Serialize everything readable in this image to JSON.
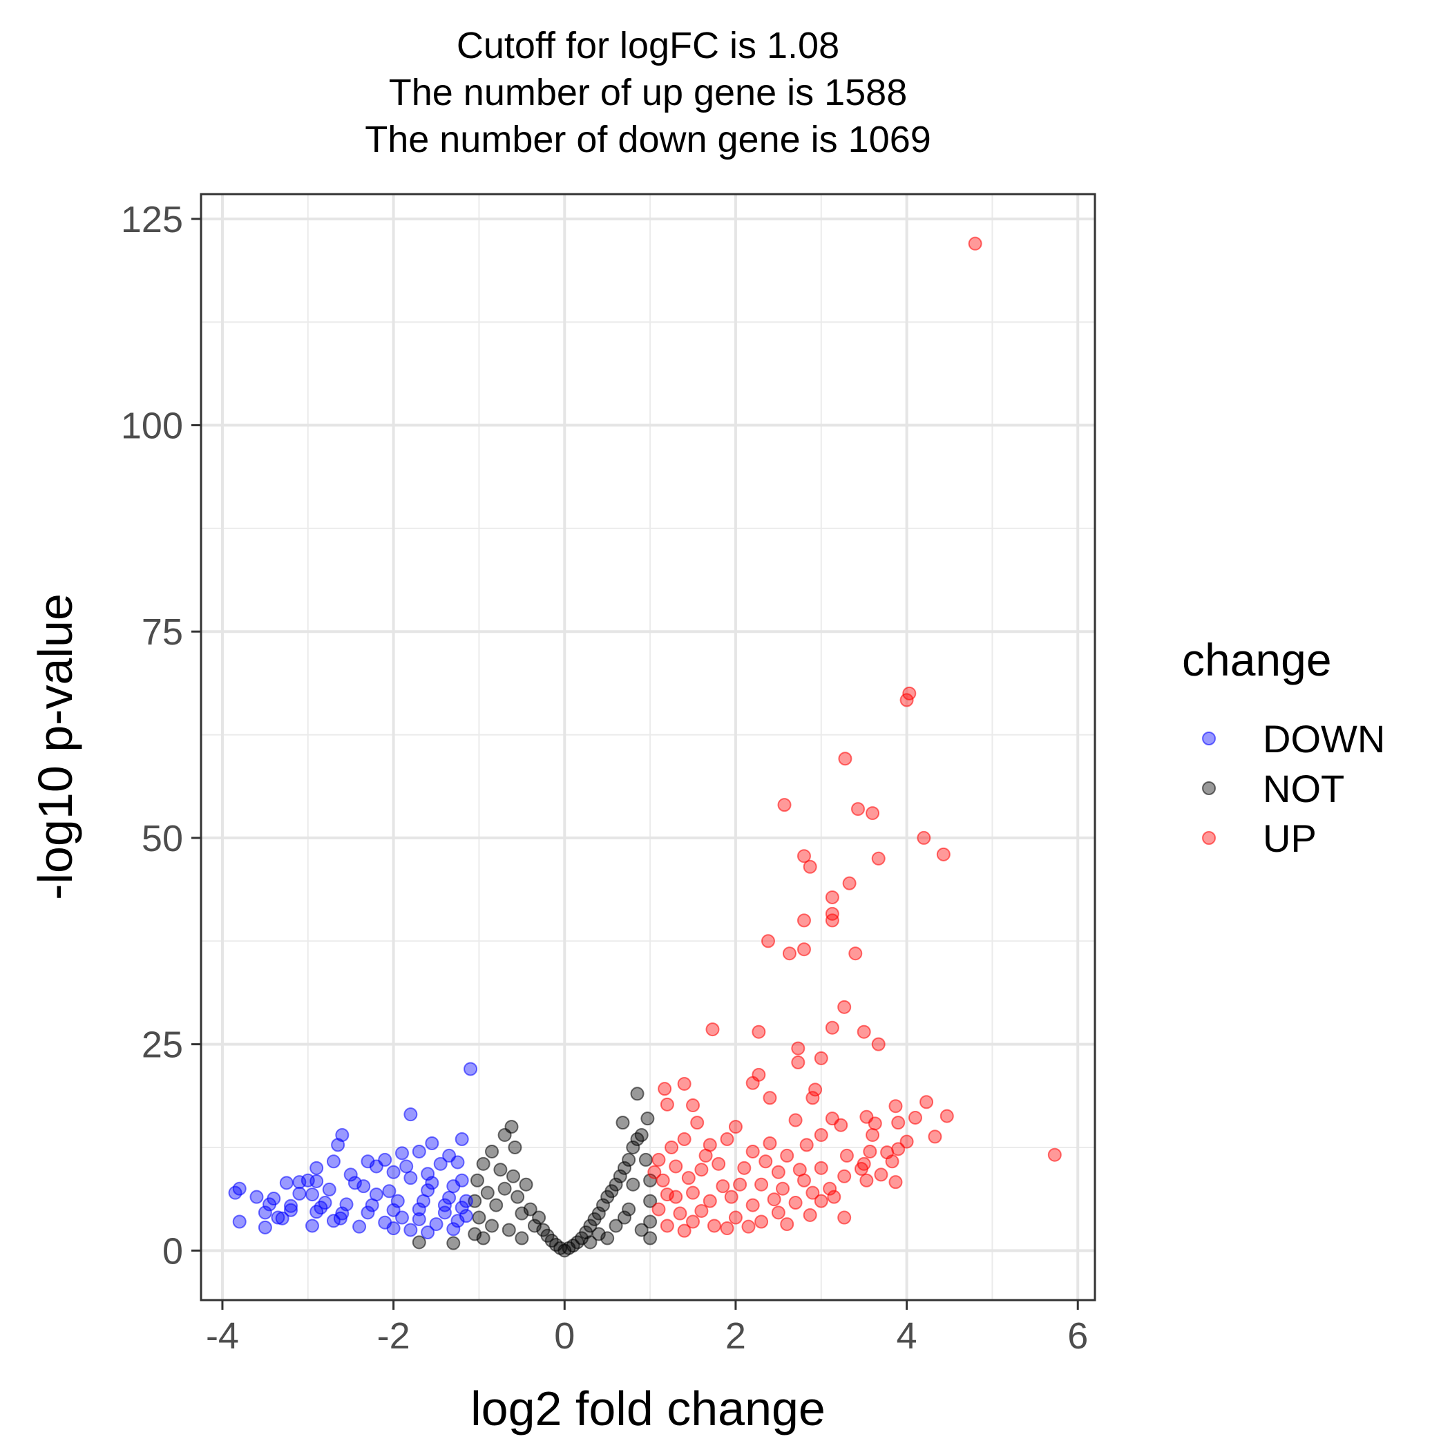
{
  "chart_data": {
    "type": "scatter",
    "title_lines": [
      "Cutoff for logFC is 1.08",
      "The number of up gene is 1588",
      "The number of down gene is 1069"
    ],
    "xlabel": "log2 fold change",
    "ylabel": "-log10 p-value",
    "xlim": [
      -4.25,
      6.2
    ],
    "ylim": [
      -6,
      128
    ],
    "xticks": [
      -4,
      -2,
      0,
      2,
      4,
      6
    ],
    "xtick_labels": [
      "-4",
      "-2",
      "0",
      "2",
      "4",
      "6"
    ],
    "yticks": [
      0,
      25,
      50,
      75,
      100,
      125
    ],
    "ytick_labels": [
      "0",
      "25",
      "50",
      "75",
      "100",
      "125"
    ],
    "grid": true,
    "legend": {
      "title": "change",
      "position": "right",
      "entries": [
        "DOWN",
        "NOT",
        "UP"
      ]
    },
    "colors": {
      "DOWN": "#0000ff",
      "NOT": "#000000",
      "UP": "#ff0000"
    },
    "point_opacity": 0.4,
    "series": [
      {
        "name": "DOWN",
        "points": [
          [
            -1.1,
            22
          ],
          [
            -1.8,
            16.5
          ],
          [
            -2.6,
            14
          ],
          [
            -1.55,
            13
          ],
          [
            -1.2,
            13.5
          ],
          [
            -1.7,
            12
          ],
          [
            -2.65,
            12.8
          ],
          [
            -1.35,
            11.5
          ],
          [
            -1.9,
            11.8
          ],
          [
            -2.1,
            11
          ],
          [
            -2.3,
            10.8
          ],
          [
            -2.7,
            10.8
          ],
          [
            -2.9,
            10
          ],
          [
            -2.2,
            10.2
          ],
          [
            -1.45,
            10.5
          ],
          [
            -1.25,
            10.7
          ],
          [
            -2.5,
            9.2
          ],
          [
            -2.0,
            9.5
          ],
          [
            -1.6,
            9.3
          ],
          [
            -3.25,
            8.2
          ],
          [
            -2.9,
            8.4
          ],
          [
            -3.1,
            8.3
          ],
          [
            -2.45,
            8.2
          ],
          [
            -1.8,
            8.8
          ],
          [
            -3.8,
            7.5
          ],
          [
            -3.85,
            7.0
          ],
          [
            -3.6,
            6.5
          ],
          [
            -3.4,
            6.3
          ],
          [
            -3.1,
            6.9
          ],
          [
            -2.95,
            6.8
          ],
          [
            -2.75,
            7.4
          ],
          [
            -2.35,
            7.8
          ],
          [
            -2.05,
            7.2
          ],
          [
            -1.6,
            7.3
          ],
          [
            -1.3,
            7.8
          ],
          [
            -3.45,
            5.6
          ],
          [
            -3.2,
            5.4
          ],
          [
            -2.8,
            5.8
          ],
          [
            -2.55,
            5.6
          ],
          [
            -2.25,
            5.5
          ],
          [
            -1.95,
            6.0
          ],
          [
            -1.65,
            6.0
          ],
          [
            -1.35,
            6.4
          ],
          [
            -3.5,
            4.6
          ],
          [
            -3.35,
            4.0
          ],
          [
            -3.2,
            4.9
          ],
          [
            -2.9,
            4.7
          ],
          [
            -2.6,
            4.5
          ],
          [
            -2.3,
            4.6
          ],
          [
            -2.0,
            4.9
          ],
          [
            -1.7,
            5.0
          ],
          [
            -1.4,
            4.6
          ],
          [
            -1.2,
            5.2
          ],
          [
            -3.8,
            3.5
          ],
          [
            -3.5,
            2.8
          ],
          [
            -3.3,
            3.9
          ],
          [
            -2.95,
            3.0
          ],
          [
            -2.7,
            3.6
          ],
          [
            -2.4,
            2.9
          ],
          [
            -2.1,
            3.4
          ],
          [
            -1.8,
            2.5
          ],
          [
            -1.5,
            3.2
          ],
          [
            -1.25,
            3.6
          ],
          [
            -1.15,
            4.2
          ],
          [
            -1.15,
            6.0
          ],
          [
            -1.2,
            8.5
          ],
          [
            -2.2,
            6.8
          ],
          [
            -1.9,
            4.0
          ],
          [
            -1.55,
            8.2
          ],
          [
            -1.4,
            5.5
          ],
          [
            -1.85,
            10.2
          ],
          [
            -2.0,
            2.7
          ],
          [
            -3.0,
            8.5
          ],
          [
            -2.62,
            3.9
          ],
          [
            -1.7,
            3.8
          ],
          [
            -1.6,
            2.2
          ],
          [
            -1.3,
            2.6
          ],
          [
            -2.85,
            5.2
          ]
        ]
      },
      {
        "name": "NOT",
        "points": [
          [
            -0.95,
            10.5
          ],
          [
            -0.85,
            12.0
          ],
          [
            -0.7,
            14.0
          ],
          [
            -0.62,
            15.0
          ],
          [
            -0.58,
            12.5
          ],
          [
            -0.75,
            9.8
          ],
          [
            -1.02,
            8.5
          ],
          [
            -1.05,
            6.0
          ],
          [
            -1.0,
            4.0
          ],
          [
            -1.05,
            2.0
          ],
          [
            -0.9,
            7.0
          ],
          [
            -0.8,
            5.5
          ],
          [
            -0.7,
            7.5
          ],
          [
            -0.6,
            9.0
          ],
          [
            -0.55,
            6.5
          ],
          [
            -0.5,
            4.5
          ],
          [
            -0.45,
            8.0
          ],
          [
            -0.4,
            5.0
          ],
          [
            -0.35,
            3.0
          ],
          [
            -0.3,
            4.0
          ],
          [
            -0.25,
            2.5
          ],
          [
            -0.2,
            1.8
          ],
          [
            -0.15,
            1.2
          ],
          [
            -0.1,
            0.7
          ],
          [
            -0.05,
            0.3
          ],
          [
            -0.85,
            3.0
          ],
          [
            -0.95,
            1.5
          ],
          [
            -0.65,
            2.5
          ],
          [
            -0.5,
            1.5
          ],
          [
            -1.7,
            1.0
          ],
          [
            -1.3,
            0.9
          ],
          [
            0.0,
            0.0
          ],
          [
            0.05,
            0.3
          ],
          [
            0.1,
            0.6
          ],
          [
            0.15,
            1.0
          ],
          [
            0.2,
            1.5
          ],
          [
            0.25,
            2.2
          ],
          [
            0.3,
            3.0
          ],
          [
            0.35,
            3.8
          ],
          [
            0.4,
            4.5
          ],
          [
            0.45,
            5.5
          ],
          [
            0.5,
            6.5
          ],
          [
            0.55,
            7.2
          ],
          [
            0.6,
            8.0
          ],
          [
            0.65,
            9.0
          ],
          [
            0.7,
            10.0
          ],
          [
            0.75,
            11.0
          ],
          [
            0.8,
            12.5
          ],
          [
            0.85,
            13.5
          ],
          [
            0.9,
            14.0
          ],
          [
            0.95,
            11.0
          ],
          [
            1.0,
            8.5
          ],
          [
            1.0,
            6.0
          ],
          [
            1.0,
            3.5
          ],
          [
            1.0,
            1.5
          ],
          [
            0.85,
            19.0
          ],
          [
            0.68,
            15.5
          ],
          [
            0.97,
            16.0
          ],
          [
            0.75,
            5.0
          ],
          [
            0.6,
            3.0
          ],
          [
            0.9,
            2.5
          ],
          [
            0.5,
            1.5
          ],
          [
            0.8,
            8.0
          ],
          [
            0.4,
            2.0
          ],
          [
            0.7,
            4.0
          ],
          [
            0.3,
            1.0
          ]
        ]
      },
      {
        "name": "UP",
        "points": [
          [
            4.8,
            122
          ],
          [
            4.03,
            67.5
          ],
          [
            4.0,
            66.7
          ],
          [
            3.28,
            59.6
          ],
          [
            2.57,
            54.0
          ],
          [
            3.43,
            53.5
          ],
          [
            3.6,
            53.0
          ],
          [
            4.2,
            50.0
          ],
          [
            4.43,
            48.0
          ],
          [
            2.8,
            47.8
          ],
          [
            3.67,
            47.5
          ],
          [
            2.87,
            46.5
          ],
          [
            3.33,
            44.5
          ],
          [
            3.13,
            42.8
          ],
          [
            3.13,
            40.8
          ],
          [
            3.13,
            40.0
          ],
          [
            2.8,
            40.0
          ],
          [
            2.38,
            37.5
          ],
          [
            2.63,
            36.0
          ],
          [
            3.4,
            36.0
          ],
          [
            2.8,
            36.5
          ],
          [
            3.27,
            29.5
          ],
          [
            3.13,
            27.0
          ],
          [
            1.73,
            26.8
          ],
          [
            2.27,
            26.5
          ],
          [
            3.5,
            26.5
          ],
          [
            3.67,
            25.0
          ],
          [
            2.73,
            24.5
          ],
          [
            2.73,
            22.8
          ],
          [
            3.0,
            23.3
          ],
          [
            2.27,
            21.3
          ],
          [
            2.2,
            20.3
          ],
          [
            1.4,
            20.2
          ],
          [
            1.17,
            19.6
          ],
          [
            2.4,
            18.5
          ],
          [
            2.93,
            19.5
          ],
          [
            2.9,
            18.5
          ],
          [
            1.2,
            17.7
          ],
          [
            1.5,
            17.6
          ],
          [
            3.87,
            17.5
          ],
          [
            4.23,
            18.0
          ],
          [
            3.13,
            16.0
          ],
          [
            3.53,
            16.2
          ],
          [
            4.1,
            16.1
          ],
          [
            4.47,
            16.3
          ],
          [
            2.7,
            15.8
          ],
          [
            3.23,
            15.2
          ],
          [
            3.63,
            15.4
          ],
          [
            3.9,
            15.5
          ],
          [
            2.0,
            15.0
          ],
          [
            1.55,
            15.5
          ],
          [
            4.33,
            13.8
          ],
          [
            3.6,
            14.0
          ],
          [
            3.0,
            14.0
          ],
          [
            4.0,
            13.2
          ],
          [
            3.9,
            12.3
          ],
          [
            3.57,
            12.0
          ],
          [
            3.77,
            11.9
          ],
          [
            5.73,
            11.6
          ],
          [
            3.83,
            10.8
          ],
          [
            3.5,
            10.5
          ],
          [
            3.3,
            11.5
          ],
          [
            3.47,
            9.9
          ],
          [
            3.7,
            9.2
          ],
          [
            3.87,
            8.3
          ],
          [
            3.53,
            8.5
          ],
          [
            3.27,
            9.0
          ],
          [
            3.0,
            10.0
          ],
          [
            2.83,
            12.8
          ],
          [
            2.6,
            11.5
          ],
          [
            2.4,
            13.0
          ],
          [
            2.2,
            12.0
          ],
          [
            1.9,
            13.5
          ],
          [
            1.7,
            12.8
          ],
          [
            1.4,
            13.5
          ],
          [
            1.25,
            12.5
          ],
          [
            1.1,
            11.0
          ],
          [
            3.1,
            7.5
          ],
          [
            3.0,
            6.0
          ],
          [
            2.8,
            8.5
          ],
          [
            2.5,
            9.5
          ],
          [
            2.3,
            8.0
          ],
          [
            2.1,
            10.0
          ],
          [
            1.8,
            10.5
          ],
          [
            1.6,
            9.8
          ],
          [
            1.3,
            10.2
          ],
          [
            1.15,
            8.5
          ],
          [
            3.27,
            4.0
          ],
          [
            2.87,
            4.3
          ],
          [
            2.6,
            3.2
          ],
          [
            2.3,
            3.5
          ],
          [
            2.0,
            4.0
          ],
          [
            1.75,
            3.0
          ],
          [
            1.5,
            3.5
          ],
          [
            1.2,
            3.0
          ],
          [
            1.1,
            5.0
          ],
          [
            1.3,
            6.5
          ],
          [
            1.5,
            7.0
          ],
          [
            1.7,
            6.0
          ],
          [
            1.95,
            6.5
          ],
          [
            2.2,
            5.5
          ],
          [
            2.45,
            6.2
          ],
          [
            2.7,
            5.8
          ],
          [
            2.9,
            7.0
          ],
          [
            3.15,
            6.5
          ],
          [
            1.35,
            4.5
          ],
          [
            1.6,
            4.8
          ],
          [
            2.05,
            8.0
          ],
          [
            1.85,
            7.8
          ],
          [
            1.45,
            8.8
          ],
          [
            1.2,
            6.8
          ],
          [
            2.55,
            7.5
          ],
          [
            2.35,
            10.8
          ],
          [
            1.65,
            11.5
          ],
          [
            1.05,
            9.5
          ],
          [
            1.4,
            2.4
          ],
          [
            1.9,
            2.7
          ],
          [
            2.15,
            2.9
          ],
          [
            2.5,
            4.6
          ],
          [
            2.75,
            9.8
          ]
        ]
      }
    ]
  }
}
